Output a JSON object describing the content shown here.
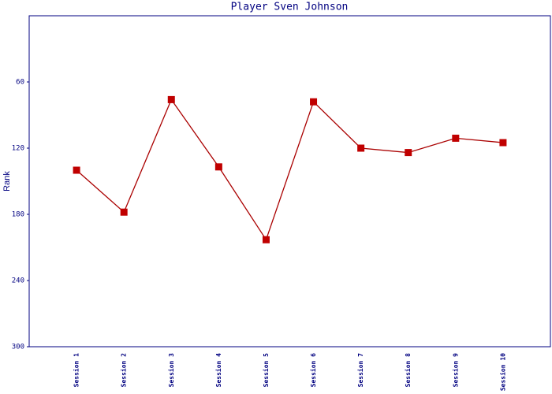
{
  "chart_data": {
    "type": "line",
    "title": "Player Sven Johnson",
    "y_label": "Rank",
    "categories": [
      "Session 1",
      "Session 2",
      "Session 3",
      "Session 4",
      "Session 5",
      "Session 6",
      "Session 7",
      "Session 8",
      "Session 9",
      "Session 10"
    ],
    "values": [
      140,
      178,
      76,
      137,
      203,
      78,
      120,
      124,
      111,
      115
    ],
    "color": "#aa0000",
    "marker_color": "#c00000",
    "ylim": [
      300,
      0
    ],
    "yticks": [
      60,
      120,
      180,
      240,
      300
    ],
    "grid": false
  }
}
